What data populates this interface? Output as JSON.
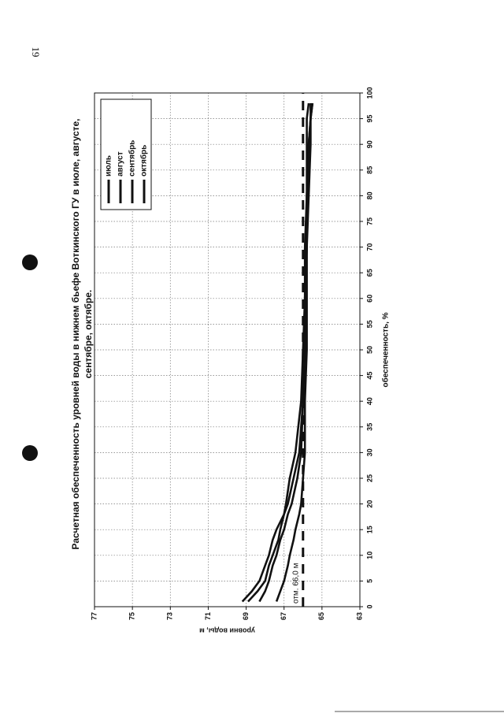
{
  "page_number": 19,
  "chart_data": {
    "type": "line",
    "title": [
      "Расчетная обеспеченность уровней воды в нижнем бьефе Воткинского ГУ в июле, августе,",
      "сентябре, октябре."
    ],
    "x_label": "обеспеченность, %",
    "y_label": "уровни воды, м",
    "x": [
      1,
      3,
      5,
      8,
      10,
      13,
      15,
      18,
      20,
      25,
      30,
      40,
      50,
      60,
      70,
      80,
      90,
      95,
      98
    ],
    "series": [
      {
        "name": "июль",
        "color": "#111111",
        "values": [
          69.2,
          68.7,
          68.3,
          68.0,
          67.8,
          67.6,
          67.4,
          67.0,
          66.8,
          66.5,
          66.2,
          66.0,
          65.9,
          65.9,
          65.8,
          65.8,
          65.7,
          65.6,
          65.5
        ]
      },
      {
        "name": "август",
        "color": "#111111",
        "values": [
          68.9,
          68.4,
          68.0,
          67.8,
          67.6,
          67.3,
          67.2,
          67.0,
          66.9,
          66.7,
          66.4,
          66.1,
          66.0,
          65.9,
          65.9,
          65.8,
          65.8,
          65.8,
          65.7
        ]
      },
      {
        "name": "сентябрь",
        "color": "#111111",
        "values": [
          68.3,
          68.0,
          67.8,
          67.6,
          67.4,
          67.2,
          67.0,
          66.8,
          66.6,
          66.3,
          66.1,
          66.0,
          65.9,
          65.9,
          65.8,
          65.8,
          65.7,
          65.6,
          65.5
        ]
      },
      {
        "name": "октябрь",
        "color": "#111111",
        "values": [
          67.4,
          67.2,
          67.0,
          66.8,
          66.7,
          66.5,
          66.4,
          66.2,
          66.1,
          66.0,
          65.9,
          65.9,
          65.8,
          65.8,
          65.8,
          65.7,
          65.6,
          65.6,
          65.6
        ]
      }
    ],
    "reference": {
      "value": 66.0,
      "label": "отм. 66,0 м"
    },
    "xlim": [
      0,
      100
    ],
    "xticks": [
      0,
      5,
      10,
      15,
      20,
      25,
      30,
      35,
      40,
      45,
      50,
      55,
      60,
      65,
      70,
      75,
      80,
      85,
      90,
      95,
      100
    ],
    "ylim": [
      63,
      77
    ],
    "yticks": [
      63,
      65,
      67,
      69,
      71,
      73,
      75,
      77
    ],
    "grid": true,
    "legend": "upper right"
  }
}
